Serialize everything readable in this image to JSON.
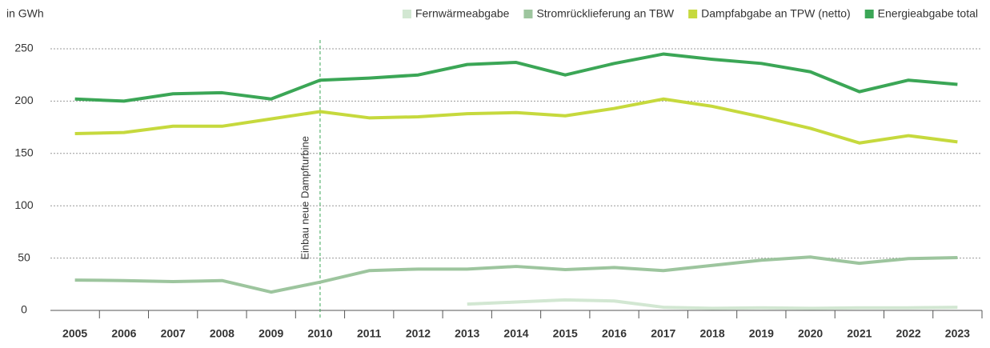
{
  "chart_data": {
    "type": "line",
    "ylabel": "in GWh",
    "categories": [
      "2005",
      "2006",
      "2007",
      "2008",
      "2009",
      "2010",
      "2011",
      "2012",
      "2013",
      "2014",
      "2015",
      "2016",
      "2017",
      "2018",
      "2019",
      "2020",
      "2021",
      "2022",
      "2023"
    ],
    "series": [
      {
        "name": "Fernwärmeabgabe",
        "color": "#d2e7d2",
        "values": [
          null,
          null,
          null,
          null,
          null,
          null,
          null,
          null,
          6,
          8,
          10,
          9,
          3,
          2,
          2.5,
          2,
          2.5,
          2.5,
          3
        ]
      },
      {
        "name": "Stromrücklieferung an TBW",
        "color": "#9dc59e",
        "values": [
          29,
          28.5,
          27.5,
          28.5,
          17.5,
          27,
          38,
          39.5,
          39.5,
          42,
          39,
          41,
          38,
          43,
          48,
          51,
          45,
          49.5,
          50.5
        ]
      },
      {
        "name": "Dampfabgabe an TPW (netto)",
        "color": "#c6d93d",
        "values": [
          169,
          170,
          176,
          176,
          183,
          190,
          184,
          185,
          188,
          189,
          186,
          193,
          202,
          195,
          185,
          174,
          160,
          167,
          161
        ]
      },
      {
        "name": "Energieabgabe total",
        "color": "#3ba656",
        "values": [
          202,
          200,
          207,
          208,
          202,
          220,
          222,
          225,
          235,
          237,
          225,
          236,
          245,
          240,
          236,
          228,
          209,
          220,
          216
        ]
      }
    ],
    "annotation": {
      "text": "Einbau neue Dampfturbine",
      "x": "2010"
    },
    "ylim": [
      0,
      250
    ],
    "yticks": [
      0,
      50,
      100,
      150,
      200,
      250
    ],
    "grid": true,
    "legend": "top-right"
  }
}
